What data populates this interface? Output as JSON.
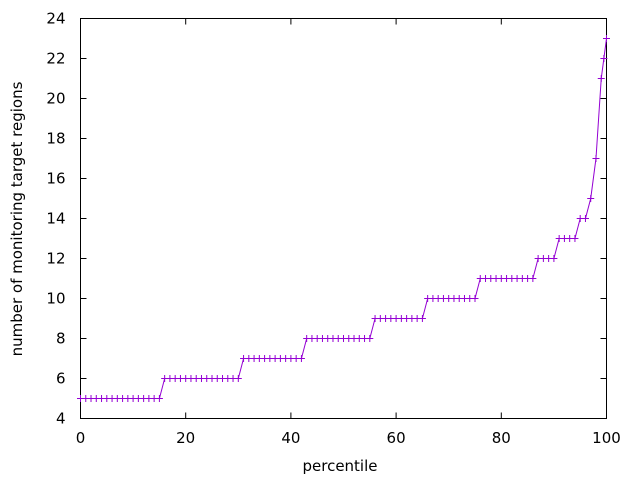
{
  "chart_data": {
    "type": "line",
    "title": "",
    "xlabel": "percentile",
    "ylabel": "number of monitoring target regions",
    "xlim": [
      0,
      100
    ],
    "ylim": [
      4,
      24
    ],
    "x_ticks": [
      "0",
      "20",
      "40",
      "60",
      "80",
      "100"
    ],
    "y_ticks": [
      "4",
      "6",
      "8",
      "10",
      "12",
      "14",
      "16",
      "18",
      "20",
      "22",
      "24"
    ],
    "grid": false,
    "legend": "none",
    "marker": "plus",
    "series": [
      {
        "color": "#9400d3",
        "points": [
          [
            0,
            5
          ],
          [
            1,
            5
          ],
          [
            2,
            5
          ],
          [
            3,
            5
          ],
          [
            4,
            5
          ],
          [
            5,
            5
          ],
          [
            6,
            5
          ],
          [
            7,
            5
          ],
          [
            8,
            5
          ],
          [
            9,
            5
          ],
          [
            10,
            5
          ],
          [
            11,
            5
          ],
          [
            12,
            5
          ],
          [
            13,
            5
          ],
          [
            14,
            5
          ],
          [
            15,
            5
          ],
          [
            16,
            6
          ],
          [
            17,
            6
          ],
          [
            18,
            6
          ],
          [
            19,
            6
          ],
          [
            20,
            6
          ],
          [
            21,
            6
          ],
          [
            22,
            6
          ],
          [
            23,
            6
          ],
          [
            24,
            6
          ],
          [
            25,
            6
          ],
          [
            26,
            6
          ],
          [
            27,
            6
          ],
          [
            28,
            6
          ],
          [
            29,
            6
          ],
          [
            30,
            6
          ],
          [
            31,
            7
          ],
          [
            32,
            7
          ],
          [
            33,
            7
          ],
          [
            34,
            7
          ],
          [
            35,
            7
          ],
          [
            36,
            7
          ],
          [
            37,
            7
          ],
          [
            38,
            7
          ],
          [
            39,
            7
          ],
          [
            40,
            7
          ],
          [
            41,
            7
          ],
          [
            42,
            7
          ],
          [
            43,
            8
          ],
          [
            44,
            8
          ],
          [
            45,
            8
          ],
          [
            46,
            8
          ],
          [
            47,
            8
          ],
          [
            48,
            8
          ],
          [
            49,
            8
          ],
          [
            50,
            8
          ],
          [
            51,
            8
          ],
          [
            52,
            8
          ],
          [
            53,
            8
          ],
          [
            54,
            8
          ],
          [
            55,
            8
          ],
          [
            56,
            9
          ],
          [
            57,
            9
          ],
          [
            58,
            9
          ],
          [
            59,
            9
          ],
          [
            60,
            9
          ],
          [
            61,
            9
          ],
          [
            62,
            9
          ],
          [
            63,
            9
          ],
          [
            64,
            9
          ],
          [
            65,
            9
          ],
          [
            66,
            10
          ],
          [
            67,
            10
          ],
          [
            68,
            10
          ],
          [
            69,
            10
          ],
          [
            70,
            10
          ],
          [
            71,
            10
          ],
          [
            72,
            10
          ],
          [
            73,
            10
          ],
          [
            74,
            10
          ],
          [
            75,
            10
          ],
          [
            76,
            11
          ],
          [
            77,
            11
          ],
          [
            78,
            11
          ],
          [
            79,
            11
          ],
          [
            80,
            11
          ],
          [
            81,
            11
          ],
          [
            82,
            11
          ],
          [
            83,
            11
          ],
          [
            84,
            11
          ],
          [
            85,
            11
          ],
          [
            86,
            11
          ],
          [
            87,
            12
          ],
          [
            88,
            12
          ],
          [
            89,
            12
          ],
          [
            90,
            12
          ],
          [
            91,
            13
          ],
          [
            92,
            13
          ],
          [
            93,
            13
          ],
          [
            94,
            13
          ],
          [
            95,
            14
          ],
          [
            96,
            14
          ],
          [
            97,
            15
          ],
          [
            98,
            17
          ],
          [
            99,
            21
          ],
          [
            99.5,
            22
          ],
          [
            100,
            23
          ]
        ]
      }
    ]
  }
}
